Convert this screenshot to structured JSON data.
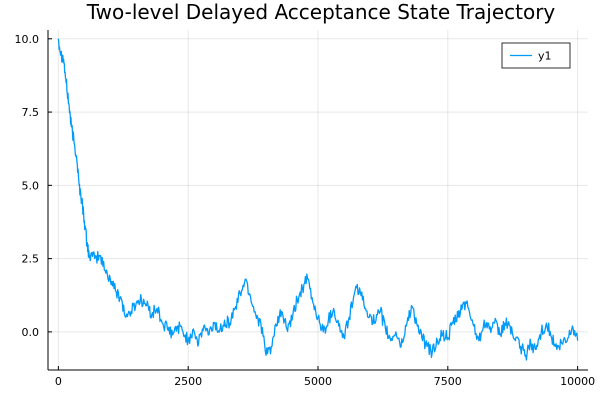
{
  "chart_data": {
    "type": "line",
    "title": "Two-level Delayed Acceptance State Trajectory",
    "xlabel": "",
    "ylabel": "",
    "xlim": [
      -200,
      10200
    ],
    "ylim": [
      -1.3,
      10.3
    ],
    "xticks": [
      0,
      2500,
      5000,
      7500,
      10000
    ],
    "xtick_labels": [
      "0",
      "2500",
      "5000",
      "7500",
      "10000"
    ],
    "yticks": [
      0,
      2.5,
      5,
      7.5,
      10
    ],
    "ytick_labels": [
      "0.0",
      "2.5",
      "5.0",
      "7.5",
      "10.0"
    ],
    "grid": true,
    "legend": {
      "position": "top-right",
      "entries": [
        "y1"
      ]
    },
    "series": [
      {
        "name": "y1",
        "color": "#009AFA",
        "x": [
          0,
          50,
          100,
          150,
          200,
          250,
          300,
          350,
          400,
          450,
          500,
          550,
          600,
          700,
          800,
          900,
          1000,
          1100,
          1200,
          1300,
          1400,
          1500,
          1600,
          1700,
          1800,
          1900,
          2000,
          2100,
          2200,
          2300,
          2400,
          2500,
          2600,
          2700,
          2800,
          2900,
          3000,
          3100,
          3200,
          3300,
          3400,
          3500,
          3600,
          3700,
          3800,
          3900,
          4000,
          4100,
          4200,
          4300,
          4400,
          4500,
          4600,
          4700,
          4800,
          4900,
          5000,
          5100,
          5200,
          5300,
          5400,
          5500,
          5600,
          5700,
          5800,
          5900,
          6000,
          6100,
          6200,
          6300,
          6400,
          6500,
          6600,
          6700,
          6800,
          6900,
          7000,
          7100,
          7200,
          7300,
          7400,
          7500,
          7600,
          7700,
          7800,
          7900,
          8000,
          8100,
          8200,
          8300,
          8400,
          8500,
          8600,
          8700,
          8800,
          8900,
          9000,
          9100,
          9200,
          9300,
          9400,
          9500,
          9600,
          9700,
          9800,
          9900,
          10000
        ],
        "y": [
          10.0,
          9.5,
          9.3,
          8.5,
          7.8,
          7.0,
          6.5,
          6.0,
          5.0,
          4.5,
          3.8,
          3.0,
          2.6,
          2.5,
          2.6,
          2.1,
          1.8,
          1.4,
          1.2,
          0.5,
          0.7,
          1.0,
          1.1,
          0.9,
          0.6,
          0.8,
          0.3,
          0.1,
          -0.1,
          0.2,
          0.0,
          -0.3,
          0.1,
          -0.4,
          0.2,
          -0.1,
          0.3,
          0.0,
          0.4,
          0.3,
          0.8,
          1.3,
          1.8,
          1.2,
          0.6,
          0.3,
          -0.8,
          -0.5,
          0.2,
          0.7,
          0.1,
          0.4,
          1.1,
          1.5,
          1.8,
          1.0,
          0.5,
          0.0,
          0.4,
          0.8,
          0.2,
          -0.2,
          0.5,
          1.3,
          1.5,
          0.8,
          0.6,
          0.3,
          0.7,
          0.1,
          -0.3,
          0.0,
          -0.5,
          0.2,
          0.9,
          0.3,
          -0.2,
          -0.5,
          -0.7,
          -0.3,
          -0.1,
          -0.2,
          0.3,
          0.5,
          1.0,
          0.8,
          0.2,
          -0.3,
          0.4,
          0.1,
          0.3,
          -0.1,
          0.3,
          0.2,
          -0.3,
          -0.5,
          -0.8,
          -0.4,
          -0.6,
          0.0,
          0.3,
          -0.2,
          -0.6,
          -0.4,
          -0.3,
          0.2,
          -0.3
        ]
      }
    ]
  }
}
